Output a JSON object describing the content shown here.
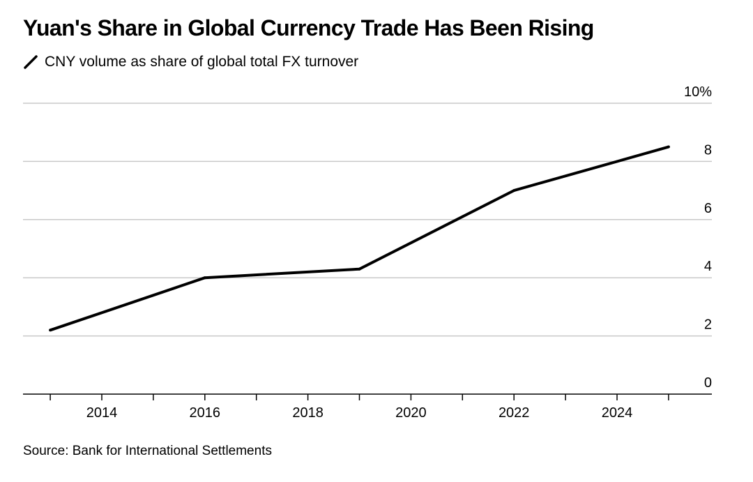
{
  "title": "Yuan's Share in Global Currency Trade Has Been Rising",
  "source": "Source: Bank for International Settlements",
  "colors": {
    "line": "#000000",
    "grid": "#c9c9c9",
    "axis": "#000000",
    "text": "#000000"
  },
  "chart_data": {
    "type": "line",
    "title": "Yuan's Share in Global Currency Trade Has Been Rising",
    "xlabel": "",
    "ylabel": "",
    "xlim": [
      2012.5,
      2025.8
    ],
    "ylim": [
      0,
      10
    ],
    "x_ticks": [
      2014,
      2016,
      2018,
      2020,
      2022,
      2024
    ],
    "y_ticks": [
      0,
      2,
      4,
      6,
      8,
      10
    ],
    "y_tick_labels": [
      "0",
      "2",
      "4",
      "6",
      "8",
      "10%"
    ],
    "grid": true,
    "legend_position": "top-left",
    "series": [
      {
        "name": "CNY volume as share of global total FX turnover",
        "x": [
          2013,
          2016,
          2019,
          2022,
          2025
        ],
        "y": [
          2.2,
          4.0,
          4.3,
          7.0,
          8.5
        ]
      }
    ]
  }
}
